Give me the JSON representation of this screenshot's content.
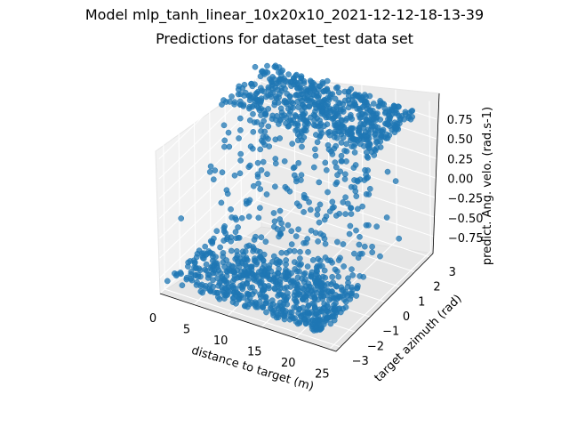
{
  "figure": {
    "suptitle": "Model mlp_tanh_linear_10x20x10_2021-12-12-18-13-39",
    "title": "Predictions for dataset_test data set"
  },
  "chart_data": {
    "type": "scatter",
    "projection": "3d",
    "title": "Predictions for dataset_test data set",
    "xlabel": "distance to target (m)",
    "ylabel": "target azimuth (rad)",
    "zlabel": "predict. Ang. velo. (rad.s-1)",
    "xticks": [
      0,
      5,
      10,
      15,
      20,
      25
    ],
    "yticks": [
      -3,
      -2,
      -1,
      0,
      1,
      2,
      3
    ],
    "zticks": [
      "0.75",
      "0.50",
      "0.25",
      "0.00",
      "−0.25",
      "−0.50",
      "−0.75"
    ],
    "xlim": [
      0,
      26
    ],
    "ylim": [
      -3.3,
      3.3
    ],
    "zlim": [
      -0.95,
      0.95
    ],
    "grid": true,
    "color": "#1f77b4",
    "series": [
      {
        "description": "approx. 1500 predictions; angular velocity saturates near -0.8 for negative azimuth and +0.8 for positive azimuth, with transition near azimuth 0",
        "x_range": [
          0.5,
          24
        ],
        "y_range": [
          -3.14,
          3.14
        ],
        "z_range": [
          -0.82,
          0.82
        ]
      }
    ]
  }
}
